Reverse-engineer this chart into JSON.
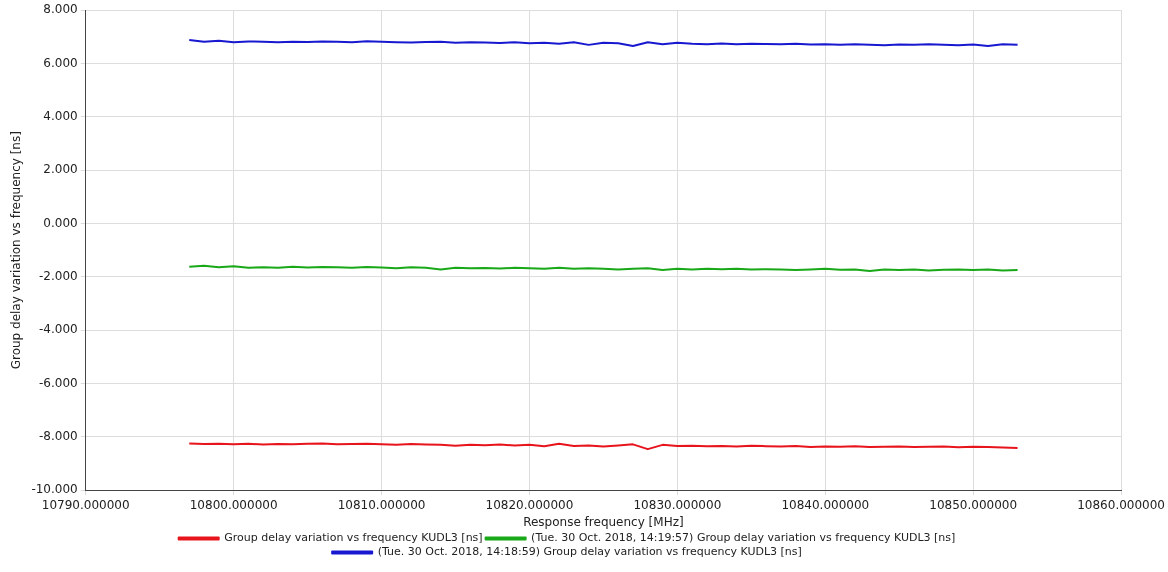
{
  "chart_data": {
    "type": "line",
    "xlabel": "Response frequency [MHz]",
    "ylabel": "Group delay variation vs frequency [ns]",
    "x": [
      10797,
      10798,
      10799,
      10800,
      10801,
      10802,
      10803,
      10804,
      10805,
      10806,
      10807,
      10808,
      10809,
      10810,
      10811,
      10812,
      10813,
      10814,
      10815,
      10816,
      10817,
      10818,
      10819,
      10820,
      10821,
      10822,
      10823,
      10824,
      10825,
      10826,
      10827,
      10828,
      10829,
      10830,
      10831,
      10832,
      10833,
      10834,
      10835,
      10836,
      10837,
      10838,
      10839,
      10840,
      10841,
      10842,
      10843,
      10844,
      10845,
      10846,
      10847,
      10848,
      10849,
      10850,
      10851,
      10852,
      10853
    ],
    "xlim": [
      10790,
      10860
    ],
    "xticks": [
      {
        "value": 10790,
        "label": "10790.000000"
      },
      {
        "value": 10800,
        "label": "10800.000000"
      },
      {
        "value": 10810,
        "label": "10810.000000"
      },
      {
        "value": 10820,
        "label": "10820.000000"
      },
      {
        "value": 10830,
        "label": "10830.000000"
      },
      {
        "value": 10840,
        "label": "10840.000000"
      },
      {
        "value": 10850,
        "label": "10850.000000"
      },
      {
        "value": 10860,
        "label": "10860.000000"
      }
    ],
    "ylim": [
      -10,
      8
    ],
    "yticks": [
      {
        "value": -10,
        "label": "-10.000"
      },
      {
        "value": -8,
        "label": "-8.000"
      },
      {
        "value": -6,
        "label": "-6.000"
      },
      {
        "value": -4,
        "label": "-4.000"
      },
      {
        "value": -2,
        "label": "-2.000"
      },
      {
        "value": 0,
        "label": "0.000"
      },
      {
        "value": 2,
        "label": "2.000"
      },
      {
        "value": 4,
        "label": "4.000"
      },
      {
        "value": 6,
        "label": "6.000"
      },
      {
        "value": 8,
        "label": "8.000"
      }
    ],
    "grid": true,
    "legend": "bottom",
    "series": [
      {
        "name": "Group delay variation vs frequency KUDL3 [ns]",
        "color": "#e8141c",
        "values": [
          -8.25,
          -8.27,
          -8.26,
          -8.28,
          -8.26,
          -8.29,
          -8.27,
          -8.28,
          -8.26,
          -8.25,
          -8.28,
          -8.27,
          -8.26,
          -8.28,
          -8.3,
          -8.27,
          -8.29,
          -8.3,
          -8.33,
          -8.3,
          -8.31,
          -8.29,
          -8.32,
          -8.3,
          -8.35,
          -8.26,
          -8.34,
          -8.32,
          -8.36,
          -8.32,
          -8.28,
          -8.46,
          -8.3,
          -8.34,
          -8.33,
          -8.35,
          -8.34,
          -8.36,
          -8.33,
          -8.35,
          -8.36,
          -8.34,
          -8.38,
          -8.36,
          -8.37,
          -8.35,
          -8.38,
          -8.37,
          -8.36,
          -8.38,
          -8.37,
          -8.36,
          -8.39,
          -8.37,
          -8.38,
          -8.4,
          -8.42
        ]
      },
      {
        "name": "(Tue. 30 Oct. 2018, 14:19:57) Group delay variation vs frequency KUDL3 [ns]",
        "color": "#18a818",
        "values": [
          -1.62,
          -1.58,
          -1.64,
          -1.6,
          -1.66,
          -1.64,
          -1.66,
          -1.62,
          -1.65,
          -1.63,
          -1.64,
          -1.66,
          -1.63,
          -1.65,
          -1.68,
          -1.64,
          -1.66,
          -1.72,
          -1.66,
          -1.68,
          -1.67,
          -1.69,
          -1.66,
          -1.68,
          -1.7,
          -1.66,
          -1.7,
          -1.68,
          -1.7,
          -1.72,
          -1.7,
          -1.68,
          -1.74,
          -1.7,
          -1.72,
          -1.7,
          -1.71,
          -1.7,
          -1.72,
          -1.71,
          -1.72,
          -1.74,
          -1.72,
          -1.7,
          -1.73,
          -1.72,
          -1.78,
          -1.72,
          -1.74,
          -1.72,
          -1.76,
          -1.73,
          -1.72,
          -1.74,
          -1.72,
          -1.76,
          -1.74
        ]
      },
      {
        "name": "(Tue. 30 Oct. 2018, 14:18:59) Group delay variation vs frequency KUDL3 [ns]",
        "color": "#1818d0",
        "values": [
          6.88,
          6.82,
          6.85,
          6.8,
          6.83,
          6.82,
          6.8,
          6.82,
          6.81,
          6.83,
          6.82,
          6.8,
          6.84,
          6.82,
          6.8,
          6.79,
          6.81,
          6.82,
          6.78,
          6.8,
          6.79,
          6.77,
          6.8,
          6.76,
          6.78,
          6.74,
          6.8,
          6.7,
          6.78,
          6.76,
          6.66,
          6.8,
          6.72,
          6.78,
          6.74,
          6.72,
          6.75,
          6.72,
          6.74,
          6.73,
          6.72,
          6.74,
          6.71,
          6.72,
          6.7,
          6.72,
          6.7,
          6.69,
          6.71,
          6.7,
          6.72,
          6.7,
          6.69,
          6.71,
          6.66,
          6.72,
          6.7
        ]
      }
    ]
  }
}
